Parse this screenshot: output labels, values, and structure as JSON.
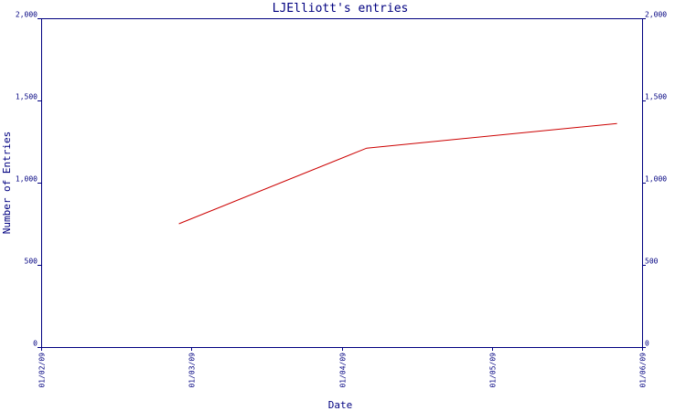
{
  "chart_data": {
    "type": "line",
    "title": "LJElliott's entries",
    "xlabel": "Date",
    "ylabel": "Number of Entries",
    "x_ticks": [
      "01/02/09",
      "01/03/09",
      "01/04/09",
      "01/05/09",
      "01/06/09"
    ],
    "y_ticks": [
      "0",
      "500",
      "1,000",
      "1,500",
      "2,000"
    ],
    "ylim": [
      0,
      2000
    ],
    "xlim": [
      "2009-01-02",
      "2009-01-06"
    ],
    "grid": false,
    "series": [
      {
        "x": [
          "2009-01-02 22:00",
          "2009-01-04 04:00",
          "2009-01-05 20:00"
        ],
        "values": [
          750,
          1210,
          1360
        ]
      }
    ],
    "colors": {
      "axis": "#000080",
      "series": "#cc0000",
      "background": "#ffffff"
    }
  }
}
